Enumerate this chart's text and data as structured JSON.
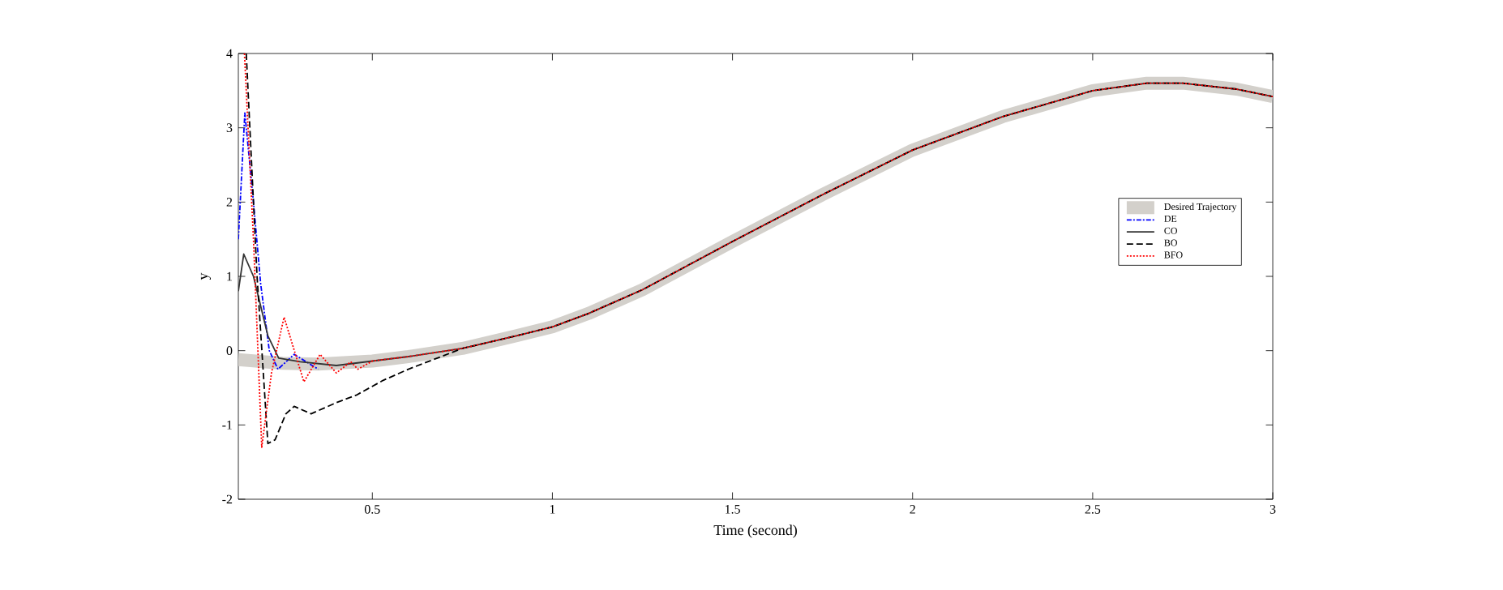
{
  "chart_data": {
    "type": "line",
    "xlabel": "Time (second)",
    "ylabel": "y",
    "xlim": [
      0.128,
      3
    ],
    "ylim": [
      -2,
      4
    ],
    "xticks": [
      0.5,
      1,
      1.5,
      2,
      2.5,
      3
    ],
    "yticks": [
      -2,
      -1,
      0,
      1,
      2,
      3,
      4
    ],
    "legend": "right",
    "series": [
      {
        "name": "Desired Trajectory",
        "color": "#d3d0cb",
        "line_style": "solid",
        "x": [
          0.128,
          0.25,
          0.35,
          0.5,
          0.6,
          0.75,
          0.9,
          1.0,
          1.1,
          1.25,
          1.5,
          1.75,
          2.0,
          2.25,
          2.5,
          2.65,
          2.75,
          2.9,
          3.0
        ],
        "values": [
          -0.12,
          -0.17,
          -0.18,
          -0.14,
          -0.08,
          0.03,
          0.2,
          0.32,
          0.5,
          0.82,
          1.47,
          2.1,
          2.7,
          3.15,
          3.5,
          3.6,
          3.6,
          3.52,
          3.42
        ]
      },
      {
        "name": "DE",
        "color": "#0000ff",
        "line_style": "dashdot",
        "x": [
          0.128,
          0.146,
          0.17,
          0.19,
          0.214,
          0.238,
          0.283,
          0.35
        ],
        "values": [
          1.5,
          3.2,
          2.0,
          0.9,
          0.0,
          -0.25,
          -0.05,
          -0.25
        ]
      },
      {
        "name": "CO",
        "color": "#333333",
        "line_style": "solid",
        "x": [
          0.128,
          0.143,
          0.17,
          0.21,
          0.24,
          0.3,
          0.4,
          0.5,
          0.6,
          0.75,
          0.9,
          1.0,
          1.1,
          1.25,
          1.5,
          1.75,
          2.0,
          2.25,
          2.5,
          2.65,
          2.75,
          2.9,
          3.0
        ],
        "values": [
          0.8,
          1.3,
          1.0,
          0.2,
          -0.1,
          -0.15,
          -0.2,
          -0.14,
          -0.08,
          0.03,
          0.2,
          0.32,
          0.5,
          0.82,
          1.47,
          2.1,
          2.7,
          3.15,
          3.5,
          3.6,
          3.6,
          3.52,
          3.42
        ]
      },
      {
        "name": "BO",
        "color": "#000000",
        "line_style": "dashed",
        "x": [
          0.15,
          0.18,
          0.21,
          0.23,
          0.26,
          0.283,
          0.33,
          0.4,
          0.455,
          0.53,
          0.6,
          0.75,
          0.9,
          1.0,
          1.1,
          1.25,
          1.5,
          1.75,
          2.0,
          2.25,
          2.5,
          2.65,
          2.75,
          2.9,
          3.0
        ],
        "values": [
          4.0,
          1.0,
          -1.25,
          -1.2,
          -0.85,
          -0.75,
          -0.85,
          -0.7,
          -0.6,
          -0.4,
          -0.25,
          0.03,
          0.2,
          0.32,
          0.5,
          0.82,
          1.47,
          2.1,
          2.7,
          3.15,
          3.5,
          3.6,
          3.6,
          3.52,
          3.42
        ]
      },
      {
        "name": "BFO",
        "color": "#ff0000",
        "line_style": "dotted",
        "x": [
          0.145,
          0.17,
          0.193,
          0.22,
          0.255,
          0.31,
          0.355,
          0.4,
          0.44,
          0.46,
          0.5,
          0.6,
          0.75,
          0.9,
          1.0,
          1.1,
          1.25,
          1.5,
          1.75,
          2.0,
          2.25,
          2.5,
          2.65,
          2.75,
          2.9,
          3.0
        ],
        "values": [
          4.0,
          1.5,
          -1.3,
          -0.3,
          0.45,
          -0.42,
          -0.05,
          -0.3,
          -0.15,
          -0.25,
          -0.14,
          -0.08,
          0.03,
          0.2,
          0.32,
          0.5,
          0.82,
          1.47,
          2.1,
          2.7,
          3.15,
          3.5,
          3.6,
          3.6,
          3.52,
          3.42
        ]
      }
    ]
  }
}
